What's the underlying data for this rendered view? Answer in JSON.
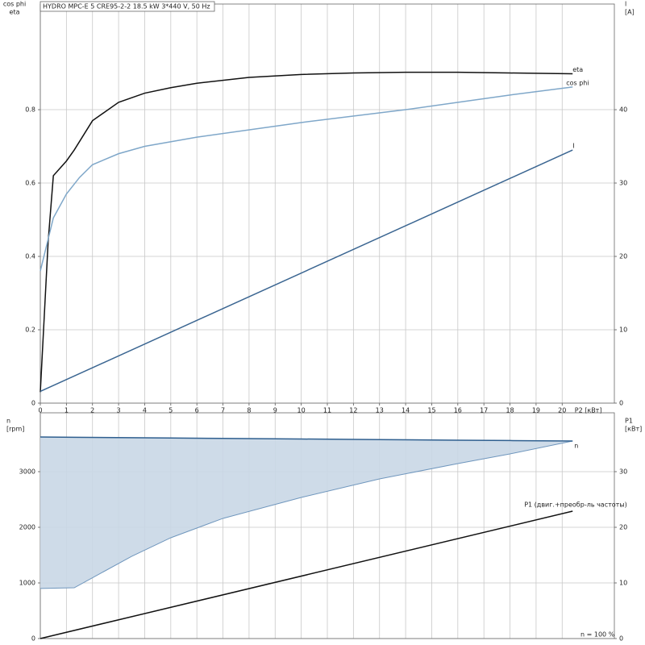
{
  "chart_data": [
    {
      "type": "line",
      "title": "HYDRO MPC-E 5 CRE95-2-2   18.5 kW   3*440 V, 50 Hz",
      "ylabel": [
        "cos phi",
        "eta"
      ],
      "y2label": [
        "l",
        "[A]"
      ],
      "xlabel": "P2 [кВт]",
      "xlim": [
        0,
        22
      ],
      "xticks": [
        0,
        1,
        2,
        3,
        4,
        5,
        6,
        7,
        8,
        9,
        10,
        11,
        12,
        13,
        14,
        15,
        16,
        17,
        18,
        19,
        20
      ],
      "ylim": [
        0,
        1.088
      ],
      "yticks": [
        0,
        0.2,
        0.4,
        0.6,
        0.8
      ],
      "y2lim": [
        0,
        54.4
      ],
      "y2ticks": [
        0,
        10,
        20,
        30,
        40
      ],
      "grid": true,
      "series": [
        {
          "name": "eta",
          "color": "#111111",
          "x": [
            0,
            0.3,
            0.5,
            1,
            1.3,
            2,
            3,
            4,
            5,
            6,
            8,
            10,
            12,
            14,
            16,
            18,
            20.4
          ],
          "values": [
            0.03,
            0.44,
            0.62,
            0.66,
            0.69,
            0.77,
            0.82,
            0.845,
            0.86,
            0.872,
            0.888,
            0.896,
            0.9,
            0.902,
            0.902,
            0.9,
            0.898
          ]
        },
        {
          "name": "cos phi",
          "color": "#7fa7c9",
          "x": [
            0,
            0.5,
            1,
            1.5,
            2,
            3,
            4,
            6,
            10,
            14,
            18,
            20.4
          ],
          "values": [
            0.36,
            0.505,
            0.57,
            0.615,
            0.65,
            0.68,
            0.7,
            0.725,
            0.765,
            0.8,
            0.84,
            0.862
          ]
        },
        {
          "name": "I",
          "color": "#3a6591",
          "axis": "y2",
          "x": [
            0,
            20.4
          ],
          "values": [
            1.6,
            34.5
          ]
        }
      ]
    },
    {
      "type": "line",
      "ylabel": [
        "n",
        "[rpm]"
      ],
      "y2label": [
        "P1",
        "[кВт]"
      ],
      "xlim": [
        0,
        22
      ],
      "ylim": [
        0,
        4058
      ],
      "yticks": [
        0,
        1000,
        2000,
        3000
      ],
      "y2lim": [
        0,
        40.58
      ],
      "y2ticks": [
        0,
        10,
        20,
        30
      ],
      "grid": true,
      "annotation": "n = 100 %",
      "series": [
        {
          "name": "n",
          "color": "#2f5f8f",
          "fill": "#c9d7e6",
          "x": [
            0,
            1.3,
            3.5,
            5,
            7,
            10,
            13,
            16,
            18,
            20.4
          ],
          "values": [
            3623,
            3618,
            3610,
            3605,
            3598,
            3587,
            3576,
            3566,
            3559,
            3550
          ],
          "lower": [
            900,
            913,
            1478,
            1812,
            2160,
            2536,
            2870,
            3145,
            3319,
            3550
          ]
        },
        {
          "name": "P1 (двиг.+преобр-ль частоты)",
          "color": "#111111",
          "axis": "y2",
          "x": [
            0,
            20.4
          ],
          "values": [
            0,
            22.9
          ]
        }
      ]
    }
  ]
}
